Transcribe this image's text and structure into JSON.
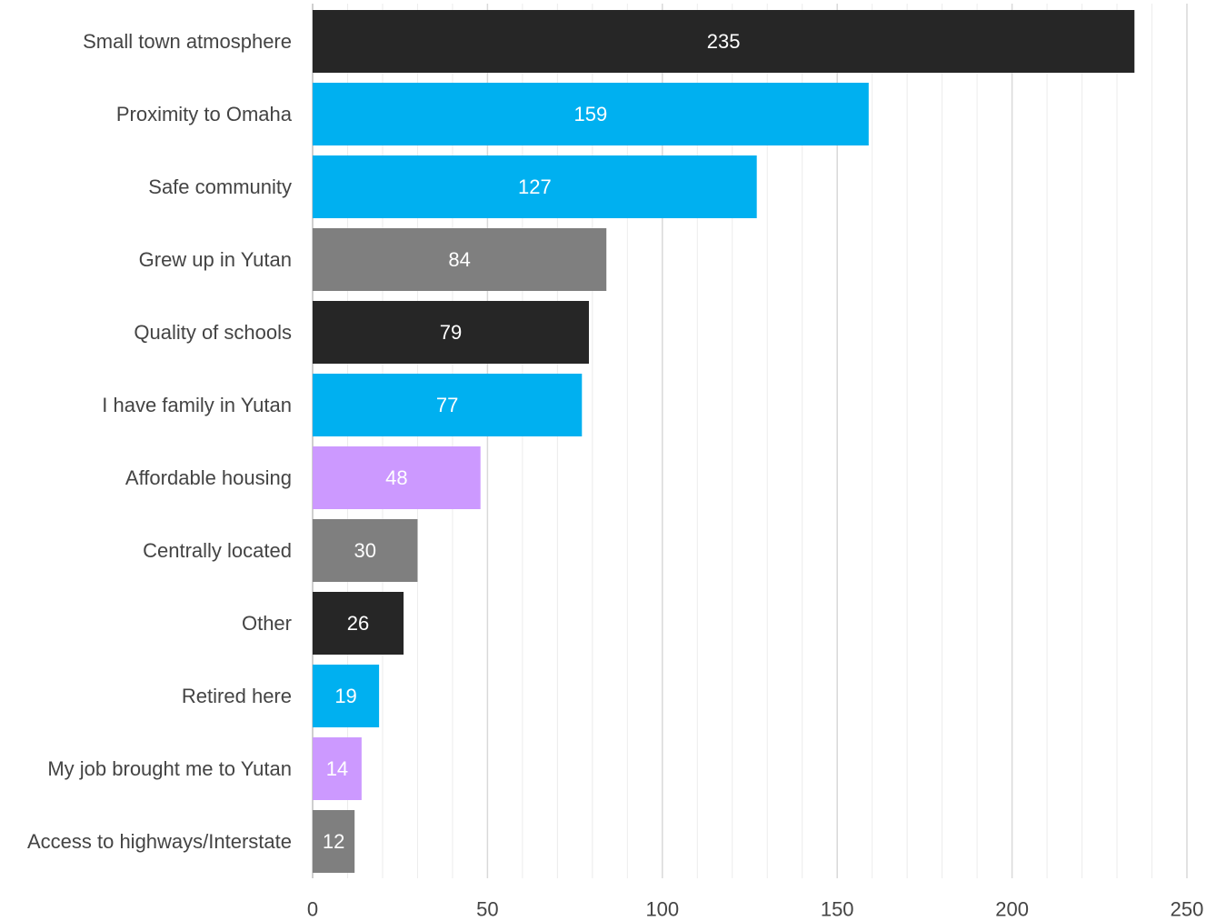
{
  "chart_data": {
    "type": "bar",
    "orientation": "horizontal",
    "title": "",
    "xlabel": "",
    "ylabel": "",
    "categories": [
      "Small town atmosphere",
      "Proximity to Omaha",
      "Safe community",
      "Grew up in Yutan",
      "Quality of schools",
      "I have family in Yutan",
      "Affordable housing",
      "Centrally located",
      "Other",
      "Retired here",
      "My job brought me to Yutan",
      "Access to highways/Interstate"
    ],
    "values": [
      235,
      159,
      127,
      84,
      79,
      77,
      48,
      30,
      26,
      19,
      14,
      12
    ],
    "bar_colors": [
      "#262626",
      "#00b0f0",
      "#00b0f0",
      "#7f7f7f",
      "#262626",
      "#00b0f0",
      "#cc99ff",
      "#7f7f7f",
      "#262626",
      "#00b0f0",
      "#cc99ff",
      "#7f7f7f"
    ],
    "data_labels": [
      "235",
      "159",
      "127",
      "84",
      "79",
      "77",
      "48",
      "30",
      "26",
      "19",
      "14",
      "12"
    ],
    "xlim": [
      0,
      250
    ],
    "major_ticks": [
      0,
      50,
      100,
      150,
      200,
      250
    ],
    "major_tick_labels": [
      "0",
      "50",
      "100",
      "150",
      "200",
      "250"
    ],
    "minor_tick_step": 10,
    "grid": true,
    "legend": "none"
  }
}
